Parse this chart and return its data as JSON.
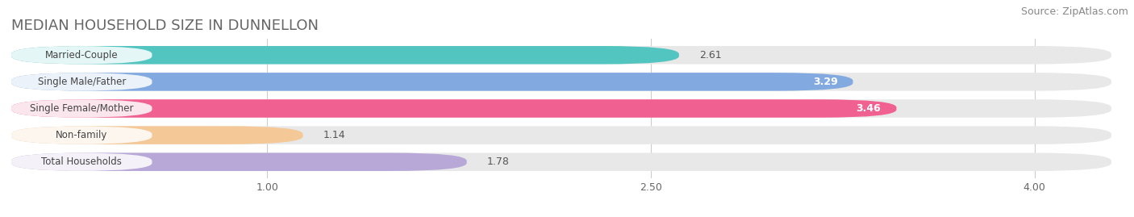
{
  "title": "MEDIAN HOUSEHOLD SIZE IN DUNNELLON",
  "source": "Source: ZipAtlas.com",
  "categories": [
    "Married-Couple",
    "Single Male/Father",
    "Single Female/Mother",
    "Non-family",
    "Total Households"
  ],
  "values": [
    2.61,
    3.29,
    3.46,
    1.14,
    1.78
  ],
  "bar_colors": [
    "#52c5c0",
    "#82aae0",
    "#f06090",
    "#f5c897",
    "#b8a8d8"
  ],
  "bar_bg_color": "#e8e8e8",
  "xlim": [
    0.0,
    4.3
  ],
  "xticks": [
    1.0,
    2.5,
    4.0
  ],
  "value_label_color_inside": [
    "#555555",
    "#ffffff",
    "#ffffff",
    "#555555",
    "#555555"
  ],
  "value_label_inside": [
    false,
    true,
    true,
    false,
    false
  ],
  "title_fontsize": 13,
  "source_fontsize": 9,
  "bar_label_fontsize": 8.5,
  "value_fontsize": 9,
  "background_color": "#ffffff",
  "title_color": "#666666",
  "source_color": "#888888"
}
